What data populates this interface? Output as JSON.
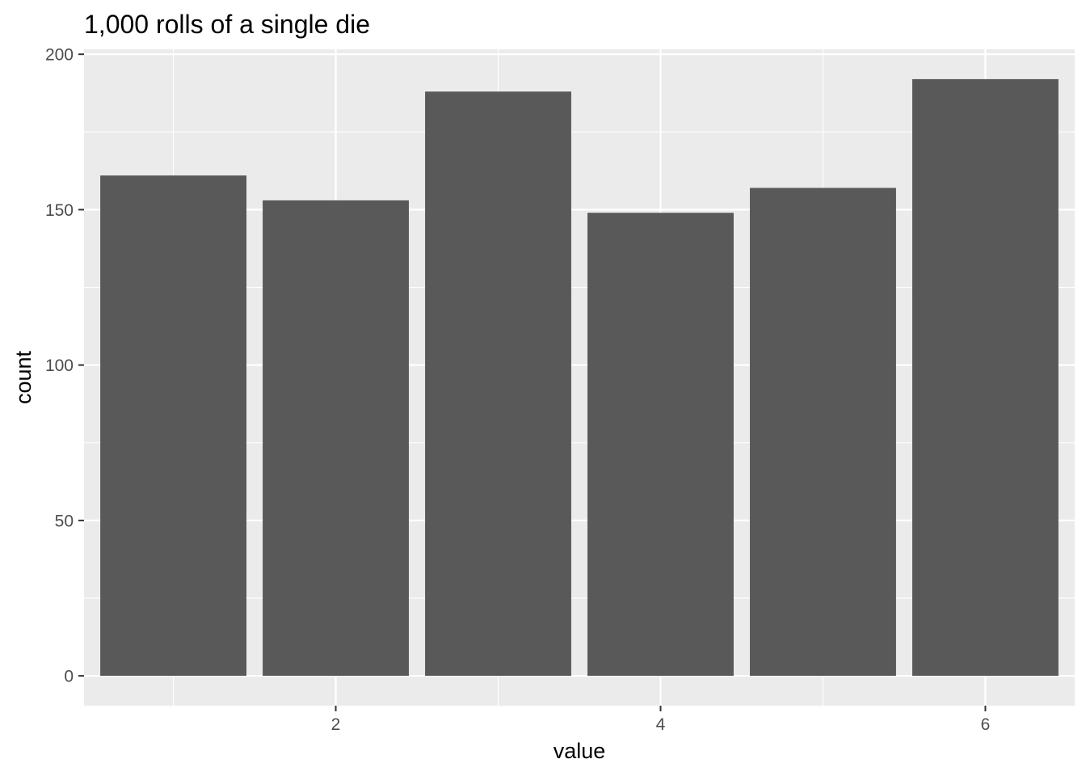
{
  "chart_data": {
    "type": "bar",
    "title": "1,000 rolls of a single die",
    "xlabel": "value",
    "ylabel": "count",
    "categories": [
      1,
      2,
      3,
      4,
      5,
      6
    ],
    "values": [
      161,
      153,
      188,
      149,
      157,
      192
    ],
    "xlim": [
      0.45,
      6.55
    ],
    "ylim": [
      -9.6,
      201.6
    ],
    "x_ticks": [
      2,
      4,
      6
    ],
    "y_ticks": [
      0,
      50,
      100,
      150,
      200
    ],
    "grid": true,
    "legend": "none",
    "colors": {
      "bar": "#595959",
      "panel": "#ebebeb",
      "grid": "#ffffff",
      "tick_text": "#4d4d4d",
      "tick_mark": "#333333"
    }
  }
}
